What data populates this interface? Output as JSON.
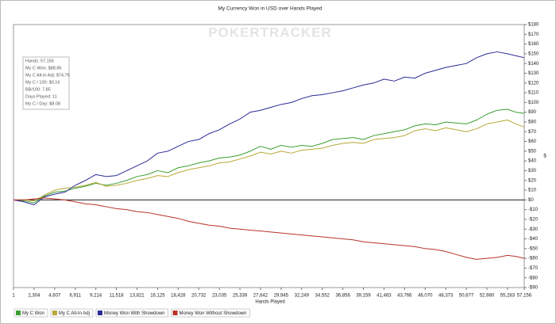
{
  "chart_data": {
    "type": "line",
    "title": "My Currency Won in USD over Hands Played",
    "watermark": "POKERTRACKER",
    "x_label": "Hands Played",
    "y_label": "$",
    "info_box": [
      "Hands: 57,156",
      "My C Won: $88.86",
      "My C All-In Adj: $74.76",
      "My C / 100: $0.16",
      "BB/100: 7.85",
      "Days Played: 11",
      "My C / Day: $8.08"
    ],
    "x": [
      1,
      1150,
      2304,
      3455,
      4607,
      5760,
      6911,
      8062,
      9214,
      10366,
      11518,
      12670,
      13821,
      14973,
      16125,
      17276,
      18428,
      19580,
      20732,
      21883,
      23035,
      24187,
      25339,
      26490,
      27642,
      28793,
      29945,
      31097,
      32249,
      33400,
      34552,
      35704,
      36856,
      38007,
      39159,
      40311,
      41463,
      42614,
      43766,
      44918,
      46070,
      47221,
      48373,
      49525,
      50677,
      51828,
      52980,
      54131,
      55283,
      56220,
      57156
    ],
    "series": [
      {
        "name": "My C Won",
        "color": "#3a9e32",
        "values": [
          0,
          -1,
          -3,
          4,
          8,
          9,
          12,
          14,
          17,
          15,
          17,
          20,
          24,
          26,
          30,
          28,
          33,
          35,
          38,
          40,
          43,
          44,
          46,
          50,
          55,
          52,
          56,
          54,
          56,
          55,
          58,
          62,
          63,
          64,
          62,
          66,
          68,
          70,
          72,
          76,
          78,
          77,
          80,
          79,
          78,
          82,
          88,
          92,
          93,
          90,
          88.86
        ]
      },
      {
        "name": "My C All-In Adj",
        "color": "#b8a837",
        "values": [
          0,
          0,
          -1,
          5,
          10,
          12,
          13,
          15,
          18,
          14,
          15,
          17,
          20,
          22,
          25,
          24,
          28,
          31,
          33,
          35,
          38,
          39,
          42,
          45,
          49,
          47,
          50,
          48,
          51,
          52,
          53,
          56,
          58,
          59,
          58,
          62,
          63,
          64,
          66,
          71,
          73,
          71,
          74,
          72,
          70,
          73,
          78,
          80,
          82,
          78,
          74.76
        ]
      },
      {
        "name": "Money Won With Showdown",
        "color": "#2a2a96",
        "values": [
          0,
          -2,
          -5,
          3,
          6,
          8,
          15,
          20,
          26,
          24,
          25,
          30,
          35,
          40,
          48,
          50,
          55,
          60,
          62,
          68,
          72,
          78,
          83,
          90,
          92,
          95,
          98,
          100,
          104,
          107,
          108,
          110,
          112,
          115,
          118,
          120,
          124,
          122,
          126,
          125,
          130,
          133,
          136,
          138,
          140,
          146,
          150,
          152,
          150,
          148,
          146
        ]
      },
      {
        "name": "Money Won Without Showdown",
        "color": "#b8322a",
        "values": [
          0,
          0,
          1,
          2,
          1,
          0,
          -2,
          -4,
          -5,
          -7,
          -9,
          -10,
          -12,
          -13,
          -15,
          -17,
          -19,
          -22,
          -24,
          -26,
          -27,
          -29,
          -30,
          -31,
          -32,
          -33,
          -34,
          -35,
          -36,
          -37,
          -38,
          -39,
          -40,
          -41,
          -43,
          -44,
          -45,
          -46,
          -47,
          -48,
          -50,
          -51,
          -53,
          -56,
          -59,
          -61,
          -60,
          -59,
          -57,
          -58,
          -60
        ]
      }
    ],
    "xlim": [
      1,
      57156
    ],
    "xticks": [
      1,
      {
        "value": 2304,
        "label": "2,304"
      },
      {
        "value": 4607,
        "label": "4,607"
      },
      {
        "value": 6911,
        "label": "6,911"
      },
      {
        "value": 9214,
        "label": "9,214"
      },
      {
        "value": 11518,
        "label": "11,518"
      },
      {
        "value": 13821,
        "label": "13,821"
      },
      {
        "value": 16125,
        "label": "16,125"
      },
      {
        "value": 18428,
        "label": "18,428"
      },
      {
        "value": 20732,
        "label": "20,732"
      },
      {
        "value": 23035,
        "label": "23,035"
      },
      {
        "value": 25339,
        "label": "25,339"
      },
      {
        "value": 27642,
        "label": "27,642"
      },
      {
        "value": 29945,
        "label": "29,945"
      },
      {
        "value": 32249,
        "label": "32,249"
      },
      {
        "value": 34552,
        "label": "34,552"
      },
      {
        "value": 36856,
        "label": "36,856"
      },
      {
        "value": 39159,
        "label": "39,159"
      },
      {
        "value": 41463,
        "label": "41,463"
      },
      {
        "value": 43766,
        "label": "43,766"
      },
      {
        "value": 46070,
        "label": "46,070"
      },
      {
        "value": 48373,
        "label": "48,373"
      },
      {
        "value": 50677,
        "label": "50,677"
      },
      {
        "value": 52980,
        "label": "52,980"
      },
      {
        "value": 55283,
        "label": "55,283"
      },
      {
        "value": 57156,
        "label": "57,156"
      }
    ],
    "ylim": [
      -90,
      180
    ],
    "yticks": [
      {
        "value": 180,
        "label": "$180"
      },
      {
        "value": 170,
        "label": "$170"
      },
      {
        "value": 160,
        "label": "$160"
      },
      {
        "value": 150,
        "label": "$150"
      },
      {
        "value": 140,
        "label": "$140"
      },
      {
        "value": 130,
        "label": "$130"
      },
      {
        "value": 120,
        "label": "$120"
      },
      {
        "value": 110,
        "label": "$110"
      },
      {
        "value": 100,
        "label": "$100"
      },
      {
        "value": 90,
        "label": "$90"
      },
      {
        "value": 80,
        "label": "$80"
      },
      {
        "value": 70,
        "label": "$70"
      },
      {
        "value": 60,
        "label": "$60"
      },
      {
        "value": 50,
        "label": "$50"
      },
      {
        "value": 40,
        "label": "$40"
      },
      {
        "value": 30,
        "label": "$30"
      },
      {
        "value": 20,
        "label": "$20"
      },
      {
        "value": 10,
        "label": "$10"
      },
      {
        "value": 0,
        "label": "$0"
      },
      {
        "value": -10,
        "label": "-$10"
      },
      {
        "value": -20,
        "label": "-$20"
      },
      {
        "value": -30,
        "label": "-$30"
      },
      {
        "value": -40,
        "label": "-$40"
      },
      {
        "value": -50,
        "label": "-$50"
      },
      {
        "value": -60,
        "label": "-$60"
      },
      {
        "value": -70,
        "label": "-$70"
      },
      {
        "value": -80,
        "label": "-$80"
      },
      {
        "value": -90,
        "label": "-$90"
      }
    ],
    "grid": false,
    "legend": "bottom"
  }
}
